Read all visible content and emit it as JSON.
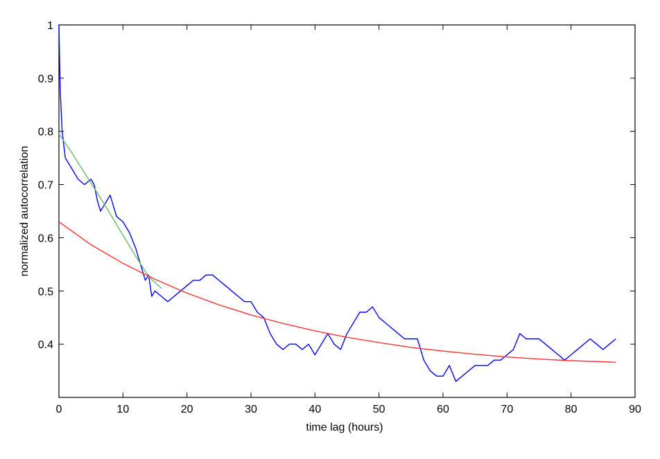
{
  "chart_data": {
    "type": "line",
    "title": "",
    "xlabel": "time lag  (hours)",
    "ylabel": "normalized  autocorrelation",
    "xlim": [
      0,
      90
    ],
    "ylim": [
      0.3,
      1.0
    ],
    "xticks": [
      0,
      10,
      20,
      30,
      40,
      50,
      60,
      70,
      80,
      90
    ],
    "yticks": [
      0.4,
      0.5,
      0.6,
      0.7,
      0.8,
      0.9,
      1.0
    ],
    "ytick_labels": [
      "0.4",
      "0.5",
      "0.6",
      "0.7",
      "0.8",
      "0.9",
      "1"
    ],
    "grid": false,
    "legend": "none",
    "series": [
      {
        "color": "#0000ff",
        "x": [
          0,
          0.2,
          0.5,
          1,
          2,
          3,
          4,
          5,
          5.5,
          6,
          6.5,
          7,
          7.5,
          8,
          8.5,
          9,
          10,
          11,
          12,
          13,
          13.5,
          14,
          14.5,
          15,
          16,
          17,
          18,
          19,
          20,
          21,
          22,
          23,
          24,
          25,
          26,
          27,
          28,
          29,
          30,
          31,
          32,
          33,
          34,
          35,
          36,
          37,
          38,
          39,
          40,
          41,
          42,
          43,
          44,
          45,
          46,
          47,
          48,
          49,
          50,
          51,
          52,
          53,
          54,
          55,
          56,
          57,
          58,
          59,
          60,
          61,
          62,
          63,
          64,
          65,
          66,
          67,
          68,
          69,
          70,
          71,
          72,
          73,
          74,
          75,
          76,
          77,
          78,
          79,
          80,
          81,
          82,
          83,
          84,
          85,
          86,
          87
        ],
        "values": [
          1.0,
          0.88,
          0.8,
          0.75,
          0.73,
          0.71,
          0.7,
          0.71,
          0.7,
          0.67,
          0.65,
          0.66,
          0.67,
          0.68,
          0.66,
          0.64,
          0.63,
          0.61,
          0.58,
          0.54,
          0.52,
          0.53,
          0.49,
          0.5,
          0.49,
          0.48,
          0.49,
          0.5,
          0.51,
          0.52,
          0.52,
          0.53,
          0.53,
          0.52,
          0.51,
          0.5,
          0.49,
          0.48,
          0.48,
          0.46,
          0.45,
          0.42,
          0.4,
          0.39,
          0.4,
          0.4,
          0.39,
          0.4,
          0.38,
          0.4,
          0.42,
          0.4,
          0.39,
          0.42,
          0.44,
          0.46,
          0.46,
          0.47,
          0.45,
          0.44,
          0.43,
          0.42,
          0.41,
          0.41,
          0.41,
          0.37,
          0.35,
          0.34,
          0.34,
          0.36,
          0.33,
          0.34,
          0.35,
          0.36,
          0.36,
          0.36,
          0.37,
          0.37,
          0.38,
          0.39,
          0.42,
          0.41,
          0.41,
          0.41,
          0.4,
          0.39,
          0.38,
          0.37,
          0.38,
          0.39,
          0.4,
          0.41,
          0.4,
          0.39,
          0.4,
          0.41
        ]
      },
      {
        "color": "#66bb66",
        "x": [
          0,
          2,
          4,
          6,
          8,
          10,
          12,
          14,
          16
        ],
        "values": [
          0.795,
          0.76,
          0.722,
          0.684,
          0.645,
          0.605,
          0.565,
          0.527,
          0.505
        ]
      },
      {
        "color": "#ff3333",
        "x": [
          0,
          5,
          10,
          15,
          20,
          25,
          30,
          35,
          40,
          45,
          50,
          55,
          60,
          65,
          70,
          75,
          80,
          85,
          87
        ],
        "values": [
          0.63,
          0.587,
          0.552,
          0.522,
          0.496,
          0.474,
          0.455,
          0.439,
          0.425,
          0.413,
          0.403,
          0.394,
          0.387,
          0.381,
          0.376,
          0.372,
          0.369,
          0.367,
          0.366
        ]
      }
    ]
  }
}
